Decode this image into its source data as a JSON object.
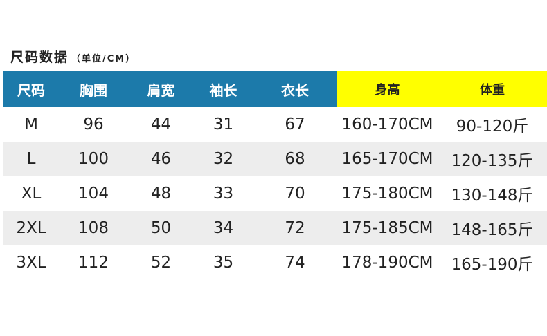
{
  "title": "尺码数据",
  "unit": "（单位/CM）",
  "colors": {
    "header_blue": "#1c7aaa",
    "header_yellow": "#ffff00",
    "row_alt": "#ededed"
  },
  "headers": [
    "尺码",
    "胸围",
    "肩宽",
    "袖长",
    "衣长",
    "身高",
    "体重"
  ],
  "rows": [
    [
      "M",
      "96",
      "44",
      "31",
      "67",
      "160-170CM",
      "90-120斤"
    ],
    [
      "L",
      "100",
      "46",
      "32",
      "68",
      "165-170CM",
      "120-135斤"
    ],
    [
      "XL",
      "104",
      "48",
      "33",
      "70",
      "175-180CM",
      "130-148斤"
    ],
    [
      "2XL",
      "108",
      "50",
      "34",
      "72",
      "175-185CM",
      "148-165斤"
    ],
    [
      "3XL",
      "112",
      "52",
      "35",
      "74",
      "178-190CM",
      "165-190斤"
    ]
  ]
}
